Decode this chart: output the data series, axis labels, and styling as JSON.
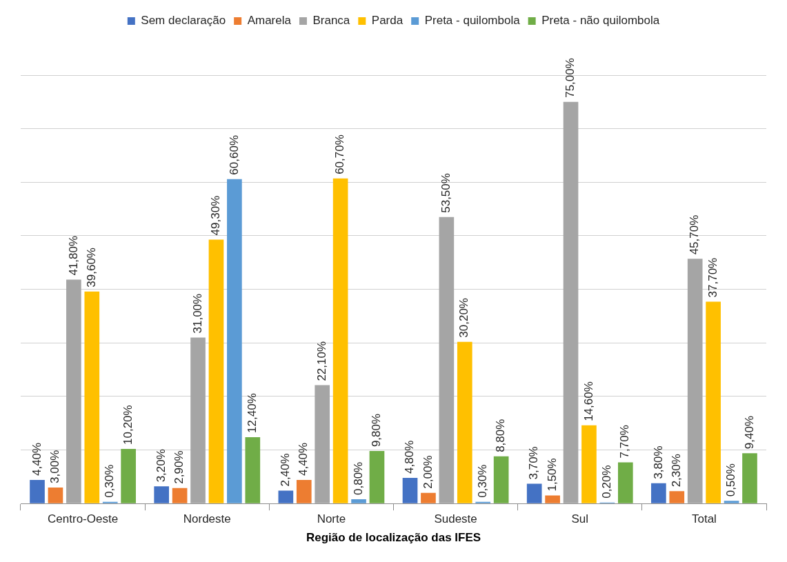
{
  "chart_data": {
    "type": "bar",
    "xlabel": "Região de localização das IFES",
    "categories": [
      "Centro-Oeste",
      "Nordeste",
      "Norte",
      "Sudeste",
      "Sul",
      "Total"
    ],
    "ylim": [
      0,
      80
    ],
    "yticks": [
      {
        "value": 0,
        "label": null
      },
      {
        "value": 10,
        "label": null
      },
      {
        "value": 20,
        "label": null
      },
      {
        "value": 30,
        "label": null
      },
      {
        "value": 40,
        "label": null
      },
      {
        "value": 50,
        "label": null
      },
      {
        "value": 60,
        "label": null
      },
      {
        "value": 70,
        "label": null
      },
      {
        "value": 80,
        "label": null
      }
    ],
    "grid": "y",
    "legend": "top",
    "tick_labels": "x",
    "series": [
      {
        "name": "Sem declaração",
        "color": "#4472c4",
        "values": [
          4.4,
          3.2,
          2.4,
          4.8,
          3.7,
          3.8
        ],
        "value_labels": [
          "4,40%",
          "3,20%",
          "2,40%",
          "4,80%",
          "3,70%",
          "3,80%"
        ]
      },
      {
        "name": "Amarela",
        "color": "#ed7d31",
        "values": [
          3.0,
          2.9,
          4.4,
          2.0,
          1.5,
          2.3
        ],
        "value_labels": [
          "3,00%",
          "2,90%",
          "4,40%",
          "2,00%",
          "1,50%",
          "2,30%"
        ]
      },
      {
        "name": "Branca",
        "color": "#a5a5a5",
        "values": [
          41.8,
          31.0,
          22.1,
          53.5,
          75.0,
          45.7
        ],
        "value_labels": [
          "41,80%",
          "31,00%",
          "22,10%",
          "53,50%",
          "75,00%",
          "45,70%"
        ]
      },
      {
        "name": "Parda",
        "color": "#ffc000",
        "values": [
          39.6,
          49.3,
          60.7,
          30.2,
          14.6,
          37.7
        ],
        "value_labels": [
          "39,60%",
          "49,30%",
          "60,70%",
          "30,20%",
          "14,60%",
          "37,70%"
        ]
      },
      {
        "name": "Preta - quilombola",
        "color": "#5b9bd5",
        "values": [
          0.3,
          60.6,
          0.8,
          0.3,
          0.2,
          0.5
        ],
        "value_labels": [
          "0,30%",
          "60,60%",
          "0,80%",
          "0,30%",
          "0,20%",
          "0,50%"
        ]
      },
      {
        "name": "Preta - não quilombola",
        "color": "#70ad47",
        "values": [
          10.2,
          12.4,
          9.8,
          8.8,
          7.7,
          9.4
        ],
        "value_labels": [
          "10,20%",
          "12,40%",
          "9,80%",
          "8,80%",
          "7,70%",
          "9,40%"
        ]
      }
    ]
  }
}
